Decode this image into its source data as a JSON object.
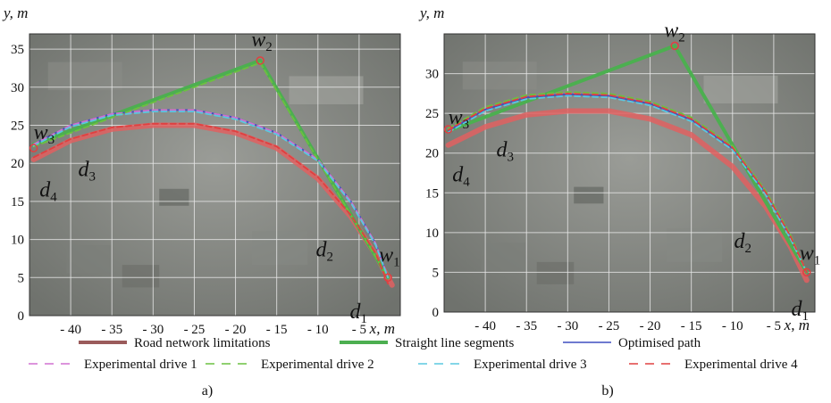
{
  "chart_data": [
    {
      "panel_label": "a)",
      "type": "line",
      "xlabel": "x, m",
      "ylabel": "y, m",
      "xlim": [
        -45,
        0
      ],
      "ylim": [
        0,
        37
      ],
      "x_ticks": [
        -40,
        -35,
        -30,
        -25,
        -20,
        -15,
        -10,
        -5
      ],
      "y_ticks": [
        0,
        5,
        10,
        15,
        20,
        25,
        30,
        35
      ],
      "x_tick_labels": [
        "- 40",
        "- 35",
        "- 30",
        "- 25",
        "- 20",
        "- 15",
        "- 10",
        "- 5"
      ],
      "points": [
        {
          "label": "w",
          "sub": "1",
          "x": -1.5,
          "y": 5,
          "dx": -10,
          "dy": -18
        },
        {
          "label": "w",
          "sub": "2",
          "x": -17,
          "y": 33.5,
          "dx": -10,
          "dy": -16
        },
        {
          "label": "w",
          "sub": "3",
          "x": -44.5,
          "y": 22,
          "dx": 0,
          "dy": -10
        },
        {
          "label": "d",
          "sub": "1",
          "x": -2,
          "y": 2,
          "dx": -38,
          "dy": 20
        },
        {
          "label": "d",
          "sub": "2",
          "x": -7,
          "y": 8,
          "dx": -30,
          "dy": 2
        },
        {
          "label": "d",
          "sub": "3",
          "x": -38,
          "y": 19.5,
          "dx": -10,
          "dy": 10
        },
        {
          "label": "d",
          "sub": "4",
          "x": -44,
          "y": 18,
          "dx": 2,
          "dy": 20
        }
      ],
      "series": [
        {
          "name": "Road network limitations",
          "color": "#e06060",
          "x": [
            -44.5,
            -40,
            -35,
            -30,
            -25,
            -20,
            -15,
            -10,
            -6,
            -3,
            -1
          ],
          "y": [
            20.5,
            23,
            24.5,
            25,
            25,
            24,
            22,
            18,
            13,
            8,
            4
          ]
        },
        {
          "name": "Straight line segments",
          "color": "#4caf50",
          "x": [
            -44.5,
            -17,
            -1.5
          ],
          "y": [
            22.5,
            33.5,
            5
          ]
        },
        {
          "name": "Optimised path",
          "color": "#3f4fc0",
          "x": [
            -44.5,
            -40,
            -35,
            -30,
            -25,
            -20,
            -15,
            -10,
            -6,
            -3,
            -1.5
          ],
          "y": [
            22.5,
            25,
            26.5,
            27,
            27,
            26,
            24,
            20.5,
            15,
            9.5,
            5
          ]
        },
        {
          "name": "Experimental drive 1",
          "color": "#d070d0",
          "x": [
            -44.5,
            -40,
            -35,
            -30,
            -25,
            -20,
            -15,
            -10,
            -6,
            -3,
            -1.5
          ],
          "y": [
            22.5,
            25,
            26.5,
            27,
            27,
            26,
            24,
            20.5,
            15,
            9.5,
            5
          ]
        },
        {
          "name": "Experimental drive 2",
          "color": "#6cc040",
          "x": [
            -44.5,
            -17,
            -1.5
          ],
          "y": [
            22.2,
            33.2,
            5
          ]
        },
        {
          "name": "Experimental drive 3",
          "color": "#5ac8e0",
          "x": [
            -44.5,
            -40,
            -35,
            -30,
            -25,
            -20,
            -15,
            -10,
            -6,
            -3,
            -1.5
          ],
          "y": [
            22.3,
            24.8,
            26.3,
            26.8,
            26.8,
            25.8,
            23.8,
            20.3,
            14.8,
            9.3,
            5
          ]
        },
        {
          "name": "Experimental drive 4",
          "color": "#e04040",
          "x": [
            -44.5,
            -40,
            -35,
            -30,
            -25,
            -20,
            -15,
            -10,
            -6,
            -3,
            -1.5
          ],
          "y": [
            20.8,
            23.2,
            24.7,
            25.2,
            25.2,
            24.2,
            22.2,
            18.2,
            13.2,
            8.2,
            4.2
          ]
        }
      ]
    },
    {
      "panel_label": "b)",
      "type": "line",
      "xlabel": "x, m",
      "ylabel": "y, m",
      "xlim": [
        -45,
        0
      ],
      "ylim": [
        0,
        35
      ],
      "x_ticks": [
        -40,
        -35,
        -30,
        -25,
        -20,
        -15,
        -10,
        -5
      ],
      "y_ticks": [
        0,
        5,
        10,
        15,
        20,
        25,
        30
      ],
      "x_tick_labels": [
        "- 40",
        "- 35",
        "- 30",
        "- 25",
        "- 20",
        "- 15",
        "- 10",
        "- 5"
      ],
      "points": [
        {
          "label": "w",
          "sub": "1",
          "x": -1,
          "y": 5,
          "dx": -8,
          "dy": -14
        },
        {
          "label": "w",
          "sub": "2",
          "x": -17,
          "y": 33.5,
          "dx": -12,
          "dy": -10
        },
        {
          "label": "w",
          "sub": "3",
          "x": -44.5,
          "y": 23,
          "dx": 0,
          "dy": -6
        },
        {
          "label": "d",
          "sub": "1",
          "x": -2,
          "y": 2,
          "dx": -8,
          "dy": 22
        },
        {
          "label": "d",
          "sub": "2",
          "x": -7,
          "y": 9,
          "dx": -26,
          "dy": 8
        },
        {
          "label": "d",
          "sub": "3",
          "x": -38,
          "y": 20,
          "dx": -6,
          "dy": 4
        },
        {
          "label": "d",
          "sub": "4",
          "x": -44,
          "y": 18,
          "dx": 0,
          "dy": 14
        }
      ],
      "series": [
        {
          "name": "Road network limitations",
          "color": "#e06060",
          "x": [
            -44.5,
            -40,
            -35,
            -30,
            -25,
            -20,
            -15,
            -10,
            -6,
            -3,
            -1
          ],
          "y": [
            21,
            23.3,
            24.8,
            25.3,
            25.3,
            24.3,
            22.3,
            18.3,
            13.3,
            8.3,
            4
          ]
        },
        {
          "name": "Straight line segments",
          "color": "#4caf50",
          "x": [
            -44.5,
            -17,
            -1
          ],
          "y": [
            22.8,
            33.5,
            5
          ]
        },
        {
          "name": "Optimised path",
          "color": "#3f4fc0",
          "x": [
            -44.5,
            -40,
            -35,
            -30,
            -25,
            -20,
            -15,
            -10,
            -6,
            -3,
            -1
          ],
          "y": [
            22.8,
            25.5,
            27,
            27.4,
            27.2,
            26.2,
            24.2,
            20.6,
            15,
            9.5,
            5
          ]
        },
        {
          "name": "Experimental drive 1",
          "color": "#d070d0",
          "x": [
            -44.5,
            -40,
            -35,
            -30,
            -25,
            -20,
            -15,
            -10,
            -6,
            -3,
            -1
          ],
          "y": [
            23,
            25.7,
            27.2,
            27.6,
            27.4,
            26.4,
            24.4,
            20.8,
            15.2,
            9.7,
            5
          ]
        },
        {
          "name": "Experimental drive 2",
          "color": "#6cc040",
          "x": [
            -44.5,
            -40,
            -35,
            -30,
            -25,
            -20,
            -15,
            -10,
            -6,
            -3,
            -1
          ],
          "y": [
            23.1,
            25.8,
            27.3,
            27.7,
            27.5,
            26.5,
            24.5,
            20.9,
            15.3,
            9.8,
            5
          ]
        },
        {
          "name": "Experimental drive 3",
          "color": "#5ac8e0",
          "x": [
            -44.5,
            -40,
            -35,
            -30,
            -25,
            -20,
            -15,
            -10,
            -6,
            -3,
            -1
          ],
          "y": [
            22.6,
            25.3,
            26.8,
            27.2,
            27,
            26,
            24,
            20.4,
            14.8,
            9.3,
            5
          ]
        },
        {
          "name": "Experimental drive 4",
          "color": "#e04040",
          "x": [
            -44.5,
            -40,
            -35,
            -30,
            -25,
            -20,
            -15,
            -10,
            -6,
            -3,
            -1
          ],
          "y": [
            22.9,
            25.6,
            27.1,
            27.5,
            27.3,
            26.3,
            24.3,
            20.7,
            15.1,
            9.6,
            5
          ]
        }
      ]
    }
  ],
  "legend": {
    "row1": [
      {
        "label": "Road network limitations",
        "color": "#9b5b5b",
        "style": "solid",
        "width": 4
      },
      {
        "label": "Straight line segments",
        "color": "#4caf50",
        "style": "solid",
        "width": 4
      },
      {
        "label": "Optimised path",
        "color": "#3f4fc0",
        "style": "solid",
        "width": 1.5
      }
    ],
    "row2": [
      {
        "label": "Experimental drive 1",
        "color": "#d070d0",
        "style": "dash",
        "width": 1.5
      },
      {
        "label": "Experimental drive 2",
        "color": "#6cc040",
        "style": "dash",
        "width": 1.5
      },
      {
        "label": "Experimental drive 3",
        "color": "#5ac8e0",
        "style": "dash",
        "width": 1.5
      },
      {
        "label": "Experimental drive 4",
        "color": "#e04040",
        "style": "dash",
        "width": 1.5
      }
    ]
  },
  "colors": {
    "map_background": "#8f918c",
    "grid": "#e8e8e8"
  }
}
